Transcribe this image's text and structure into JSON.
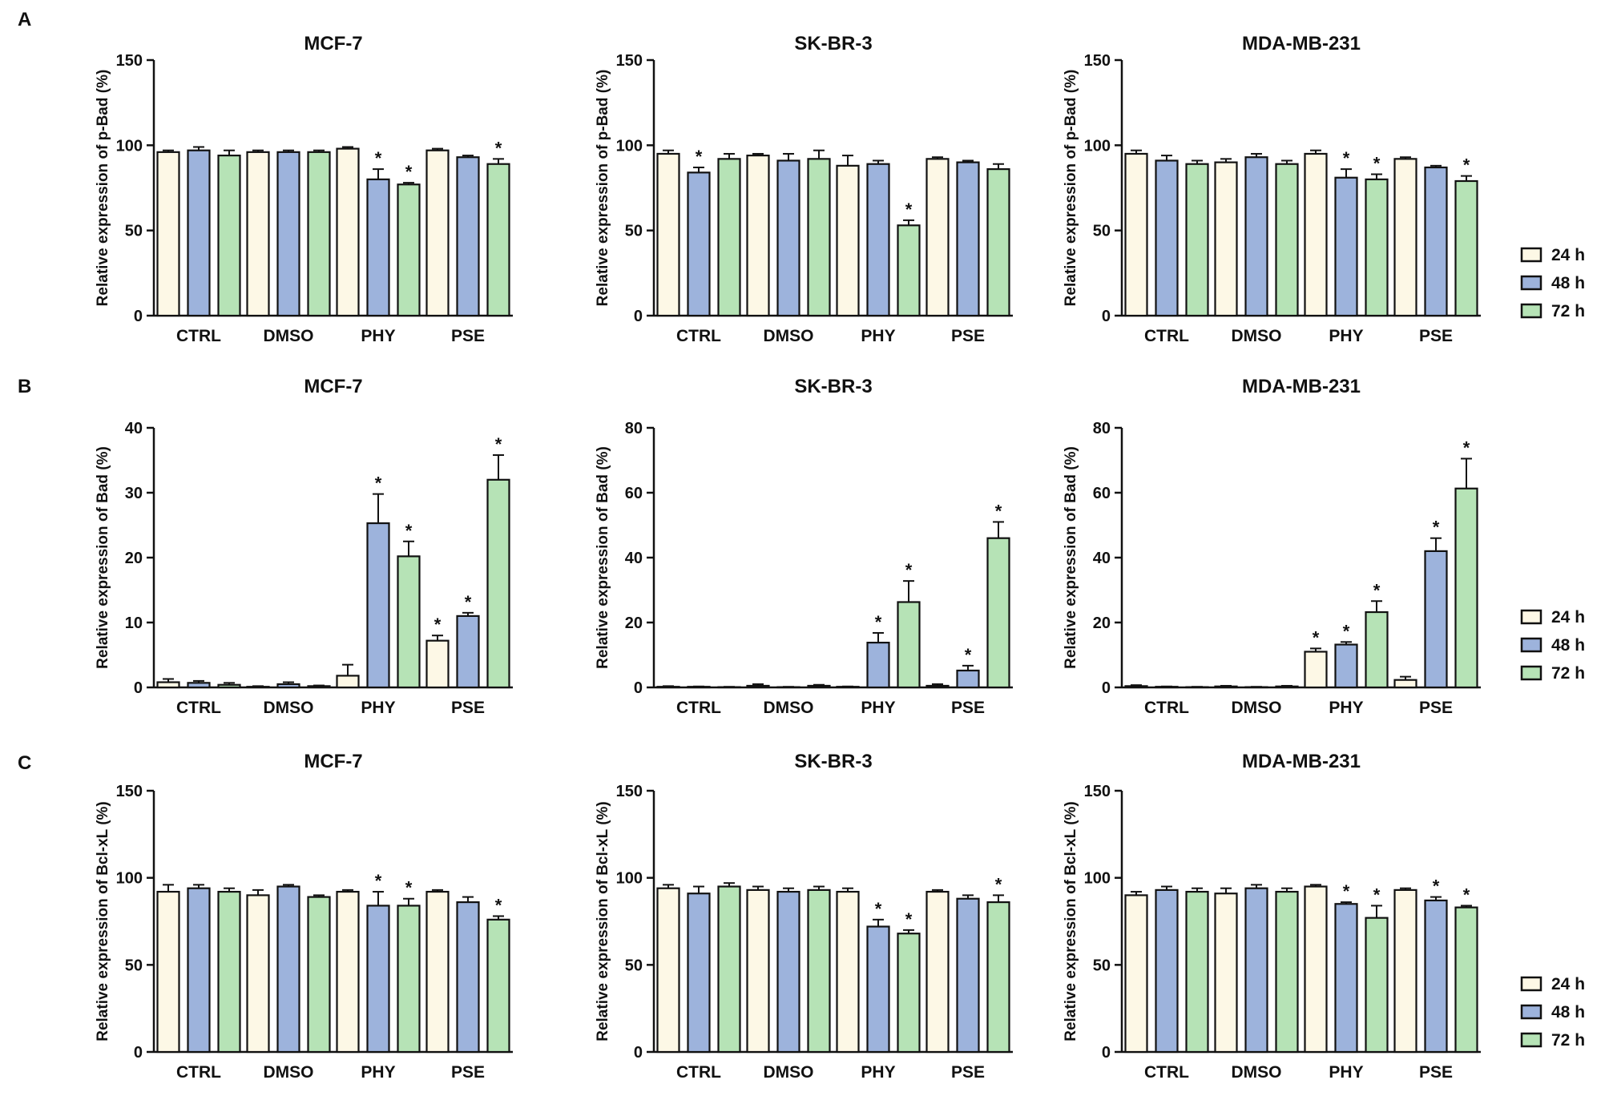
{
  "figure": {
    "panel_letters": [
      "A",
      "B",
      "C"
    ],
    "legend": [
      {
        "label": "24 h",
        "color": "#fdf8e6"
      },
      {
        "label": "48 h",
        "color": "#9db3dc"
      },
      {
        "label": "72 h",
        "color": "#b6e3b6"
      }
    ]
  },
  "chart_data": [
    {
      "type": "bar",
      "row": "A",
      "title": "MCF-7",
      "ylabel": "Relative expression of p-Bad (%)",
      "ylim": [
        0,
        150
      ],
      "yticks": [
        0,
        50,
        100,
        150
      ],
      "categories": [
        "CTRL",
        "DMSO",
        "PHY",
        "PSE"
      ],
      "series": [
        {
          "name": "24 h",
          "values": [
            96,
            96,
            98,
            97
          ],
          "errors": [
            1,
            1,
            1,
            1
          ],
          "sig": [
            false,
            false,
            false,
            false
          ]
        },
        {
          "name": "48 h",
          "values": [
            97,
            96,
            80,
            93
          ],
          "errors": [
            2,
            1,
            6,
            1
          ],
          "sig": [
            false,
            false,
            true,
            false
          ]
        },
        {
          "name": "72 h",
          "values": [
            94,
            96,
            77,
            89
          ],
          "errors": [
            3,
            1,
            1,
            3
          ],
          "sig": [
            false,
            false,
            true,
            true
          ]
        }
      ]
    },
    {
      "type": "bar",
      "row": "A",
      "title": "SK-BR-3",
      "ylabel": "Relative expression of p-Bad (%)",
      "ylim": [
        0,
        150
      ],
      "yticks": [
        0,
        50,
        100,
        150
      ],
      "categories": [
        "CTRL",
        "DMSO",
        "PHY",
        "PSE"
      ],
      "series": [
        {
          "name": "24 h",
          "values": [
            95,
            94,
            88,
            92
          ],
          "errors": [
            2,
            1,
            6,
            1
          ],
          "sig": [
            false,
            false,
            false,
            false
          ]
        },
        {
          "name": "48 h",
          "values": [
            84,
            91,
            89,
            90
          ],
          "errors": [
            3,
            4,
            2,
            1
          ],
          "sig": [
            true,
            false,
            false,
            false
          ]
        },
        {
          "name": "72 h",
          "values": [
            92,
            92,
            53,
            86
          ],
          "errors": [
            3,
            5,
            3,
            3
          ],
          "sig": [
            false,
            false,
            true,
            false
          ]
        }
      ]
    },
    {
      "type": "bar",
      "row": "A",
      "title": "MDA-MB-231",
      "ylabel": "Relative expression of p-Bad (%)",
      "ylim": [
        0,
        150
      ],
      "yticks": [
        0,
        50,
        100,
        150
      ],
      "categories": [
        "CTRL",
        "DMSO",
        "PHY",
        "PSE"
      ],
      "series": [
        {
          "name": "24 h",
          "values": [
            95,
            90,
            95,
            92
          ],
          "errors": [
            2,
            2,
            2,
            1
          ],
          "sig": [
            false,
            false,
            false,
            false
          ]
        },
        {
          "name": "48 h",
          "values": [
            91,
            93,
            81,
            87
          ],
          "errors": [
            3,
            2,
            5,
            1
          ],
          "sig": [
            false,
            false,
            true,
            false
          ]
        },
        {
          "name": "72 h",
          "values": [
            89,
            89,
            80,
            79
          ],
          "errors": [
            2,
            2,
            3,
            3
          ],
          "sig": [
            false,
            false,
            true,
            true
          ]
        }
      ]
    },
    {
      "type": "bar",
      "row": "B",
      "title": "MCF-7",
      "ylabel": "Relative expression of Bad (%)",
      "ylim": [
        0,
        40
      ],
      "yticks": [
        0,
        10,
        20,
        30,
        40
      ],
      "categories": [
        "CTRL",
        "DMSO",
        "PHY",
        "PSE"
      ],
      "series": [
        {
          "name": "24 h",
          "values": [
            0.8,
            0.1,
            1.8,
            7.2
          ],
          "errors": [
            0.5,
            0.1,
            1.7,
            0.8
          ],
          "sig": [
            false,
            false,
            false,
            true
          ]
        },
        {
          "name": "48 h",
          "values": [
            0.7,
            0.5,
            25.3,
            11
          ],
          "errors": [
            0.3,
            0.3,
            4.5,
            0.5
          ],
          "sig": [
            false,
            false,
            true,
            true
          ]
        },
        {
          "name": "72 h",
          "values": [
            0.4,
            0.2,
            20.2,
            32
          ],
          "errors": [
            0.3,
            0.1,
            2.3,
            3.8
          ],
          "sig": [
            false,
            false,
            true,
            true
          ]
        }
      ]
    },
    {
      "type": "bar",
      "row": "B",
      "title": "SK-BR-3",
      "ylabel": "Relative expression of Bad (%)",
      "ylim": [
        0,
        80
      ],
      "yticks": [
        0,
        20,
        40,
        60,
        80
      ],
      "categories": [
        "CTRL",
        "DMSO",
        "PHY",
        "PSE"
      ],
      "series": [
        {
          "name": "24 h",
          "values": [
            0.2,
            0.5,
            0.2,
            0.5
          ],
          "errors": [
            0.2,
            0.5,
            0.1,
            0.5
          ],
          "sig": [
            false,
            false,
            false,
            false
          ]
        },
        {
          "name": "48 h",
          "values": [
            0.2,
            0.1,
            13.8,
            5.2
          ],
          "errors": [
            0.1,
            0.1,
            3,
            1.5
          ],
          "sig": [
            false,
            false,
            true,
            true
          ]
        },
        {
          "name": "72 h",
          "values": [
            0.1,
            0.5,
            26.3,
            46
          ],
          "errors": [
            0.1,
            0.3,
            6.5,
            5
          ],
          "sig": [
            false,
            false,
            true,
            true
          ]
        }
      ]
    },
    {
      "type": "bar",
      "row": "B",
      "title": "MDA-MB-231",
      "ylabel": "Relative expression of Bad (%)",
      "ylim": [
        0,
        80
      ],
      "yticks": [
        0,
        20,
        40,
        60,
        80
      ],
      "categories": [
        "CTRL",
        "DMSO",
        "PHY",
        "PSE"
      ],
      "series": [
        {
          "name": "24 h",
          "values": [
            0.4,
            0.3,
            11,
            2.3
          ],
          "errors": [
            0.3,
            0.2,
            1,
            1
          ],
          "sig": [
            false,
            false,
            true,
            false
          ]
        },
        {
          "name": "48 h",
          "values": [
            0.2,
            0.1,
            13.2,
            42
          ],
          "errors": [
            0.1,
            0.1,
            0.8,
            4
          ],
          "sig": [
            false,
            false,
            true,
            true
          ]
        },
        {
          "name": "72 h",
          "values": [
            0.1,
            0.3,
            23.2,
            61.3
          ],
          "errors": [
            0.1,
            0.2,
            3.4,
            9.2
          ],
          "sig": [
            false,
            false,
            true,
            true
          ]
        }
      ]
    },
    {
      "type": "bar",
      "row": "C",
      "title": "MCF-7",
      "ylabel": "Relative expression of Bcl-xL (%)",
      "ylim": [
        0,
        150
      ],
      "yticks": [
        0,
        50,
        100,
        150
      ],
      "categories": [
        "CTRL",
        "DMSO",
        "PHY",
        "PSE"
      ],
      "series": [
        {
          "name": "24 h",
          "values": [
            92,
            90,
            92,
            92
          ],
          "errors": [
            4,
            3,
            1,
            1
          ],
          "sig": [
            false,
            false,
            false,
            false
          ]
        },
        {
          "name": "48 h",
          "values": [
            94,
            95,
            84,
            86
          ],
          "errors": [
            2,
            1,
            8,
            3
          ],
          "sig": [
            false,
            false,
            true,
            false
          ]
        },
        {
          "name": "72 h",
          "values": [
            92,
            89,
            84,
            76
          ],
          "errors": [
            2,
            1,
            4,
            2
          ],
          "sig": [
            false,
            false,
            true,
            true
          ]
        }
      ]
    },
    {
      "type": "bar",
      "row": "C",
      "title": "SK-BR-3",
      "ylabel": "Relative expression of Bcl-xL (%)",
      "ylim": [
        0,
        150
      ],
      "yticks": [
        0,
        50,
        100,
        150
      ],
      "categories": [
        "CTRL",
        "DMSO",
        "PHY",
        "PSE"
      ],
      "series": [
        {
          "name": "24 h",
          "values": [
            94,
            93,
            92,
            92
          ],
          "errors": [
            2,
            2,
            2,
            1
          ],
          "sig": [
            false,
            false,
            false,
            false
          ]
        },
        {
          "name": "48 h",
          "values": [
            91,
            92,
            72,
            88
          ],
          "errors": [
            4,
            2,
            4,
            2
          ],
          "sig": [
            false,
            false,
            true,
            false
          ]
        },
        {
          "name": "72 h",
          "values": [
            95,
            93,
            68,
            86
          ],
          "errors": [
            2,
            2,
            2,
            4
          ],
          "sig": [
            false,
            false,
            true,
            true
          ]
        }
      ]
    },
    {
      "type": "bar",
      "row": "C",
      "title": "MDA-MB-231",
      "ylabel": "Relative expression of Bcl-xL (%)",
      "ylim": [
        0,
        150
      ],
      "yticks": [
        0,
        50,
        100,
        150
      ],
      "categories": [
        "CTRL",
        "DMSO",
        "PHY",
        "PSE"
      ],
      "series": [
        {
          "name": "24 h",
          "values": [
            90,
            91,
            95,
            93
          ],
          "errors": [
            2,
            3,
            1,
            1
          ],
          "sig": [
            false,
            false,
            false,
            false
          ]
        },
        {
          "name": "48 h",
          "values": [
            93,
            94,
            85,
            87
          ],
          "errors": [
            2,
            2,
            1,
            2
          ],
          "sig": [
            false,
            false,
            true,
            true
          ]
        },
        {
          "name": "72 h",
          "values": [
            92,
            92,
            77,
            83
          ],
          "errors": [
            2,
            2,
            7,
            1
          ],
          "sig": [
            false,
            false,
            true,
            true
          ]
        }
      ]
    }
  ]
}
